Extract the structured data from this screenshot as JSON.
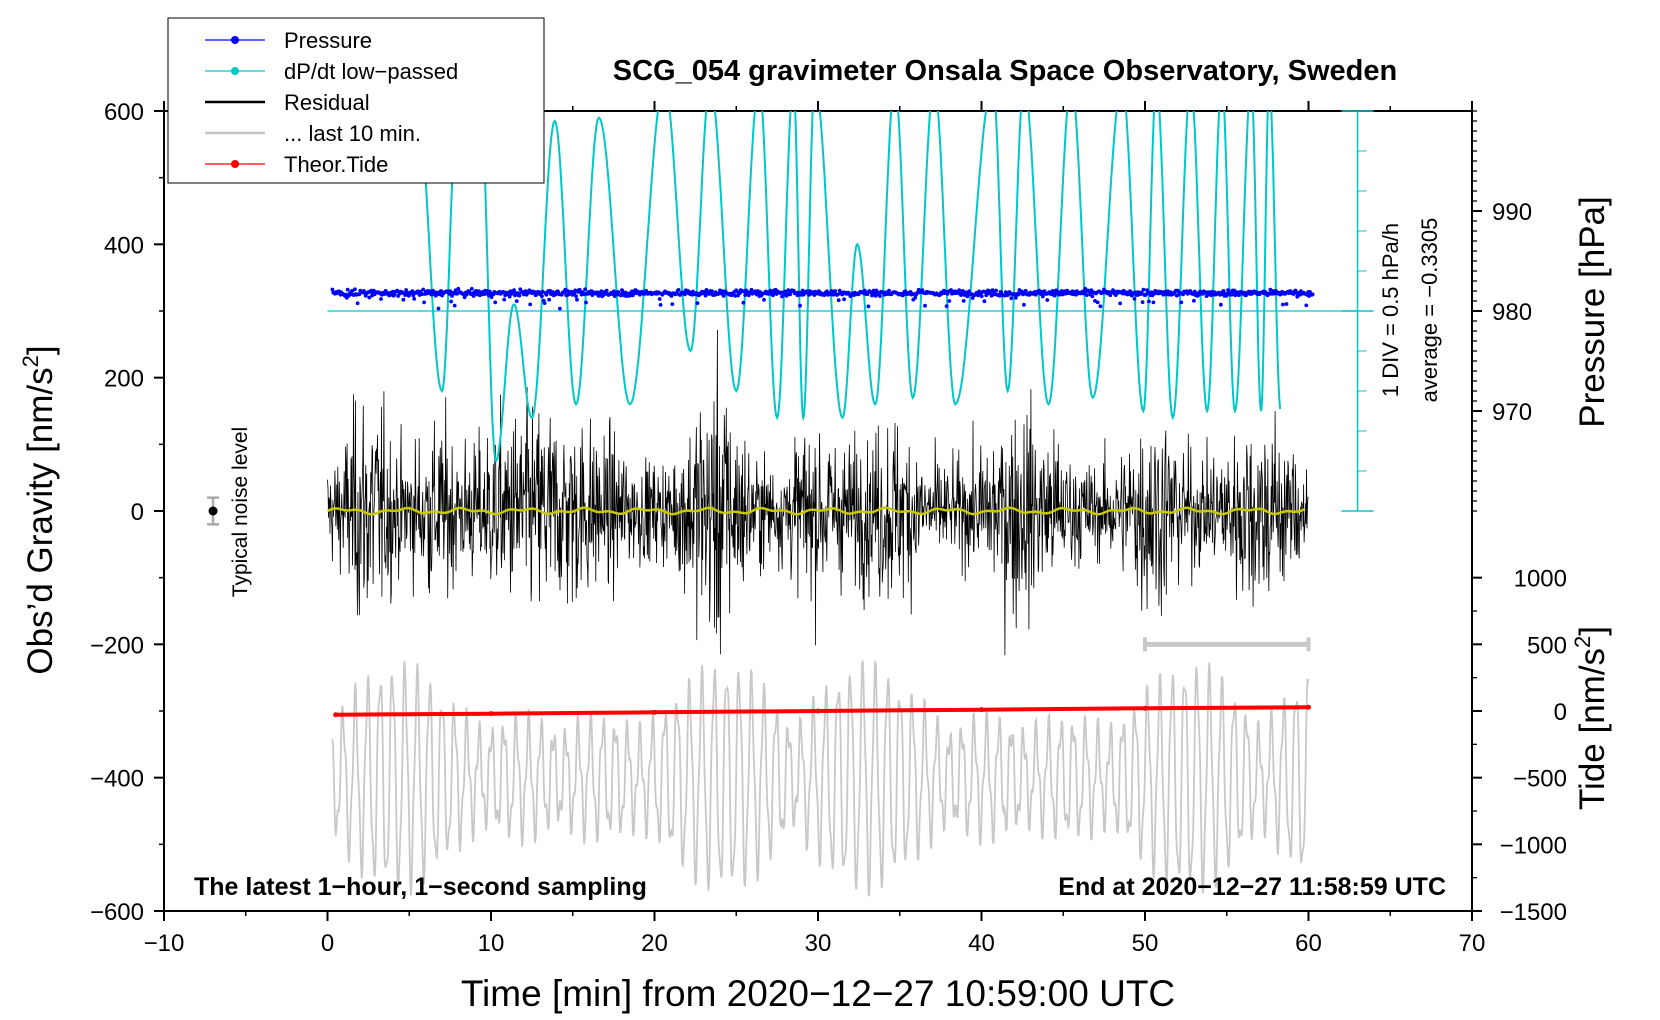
{
  "chart_data": {
    "type": "line",
    "title": "SCG_054 gravimeter Onsala Space Observatory, Sweden",
    "xlabel": "Time [min] from 2020−12−27 10:59:00 UTC",
    "ylabel_left": "Obs’d Gravity [nm/s",
    "ylabel_left_sup": "2",
    "ylabel_left_end": "]",
    "ylabel_right_top": "Pressure [hPa]",
    "ylabel_right_bottom": "Tide [nm/s",
    "ylabel_right_bottom_sup": "2",
    "ylabel_right_bottom_end": "]",
    "xlim": [
      -10,
      70
    ],
    "ylim": [
      -600,
      600
    ],
    "x_ticks": [
      -10,
      0,
      10,
      20,
      30,
      40,
      50,
      60,
      70
    ],
    "x_tick_labels": [
      "−10",
      "0",
      "10",
      "20",
      "30",
      "40",
      "50",
      "60",
      "70"
    ],
    "y_ticks": [
      -600,
      -400,
      -200,
      0,
      200,
      400,
      600
    ],
    "y_tick_labels": [
      "−600",
      "−400",
      "−200",
      "0",
      "200",
      "400",
      "600"
    ],
    "pressure_axis": {
      "ticks": [
        970,
        980,
        990
      ],
      "tick_labels": [
        "970",
        "980",
        "990"
      ],
      "gravity_at_980": 300,
      "gravity_per_hpa": 15
    },
    "tide_axis": {
      "ticks": [
        -1500,
        -1000,
        -500,
        0,
        500,
        1000
      ],
      "tick_labels": [
        "−1500",
        "−1000",
        "−500",
        "0",
        "500",
        "1000"
      ],
      "gravity_at_zero": -300,
      "gravity_per_unit": 0.2
    },
    "dpdt_scale": {
      "label_div": "1 DIV = 0.5 hPa/h",
      "label_average": "average = −0.3305",
      "x": 63,
      "range": [
        0,
        600
      ],
      "major_ticks": [
        0,
        300,
        600
      ],
      "minor_step": 60
    },
    "noise_level": {
      "label": "Typical noise level",
      "x": -7,
      "y": 0,
      "err": 20
    },
    "last10_bar": {
      "x_start": 50,
      "x_end": 60,
      "y": -200
    },
    "series": [
      {
        "name": "Pressure",
        "color": "#0000ff",
        "marker": "dot",
        "x_range": [
          0.3,
          60.3
        ],
        "mean_gravity": 327,
        "spread": 6
      },
      {
        "name": "dP/dt low−passed",
        "color": "#00c8c8",
        "marker": "dot",
        "baseline_gravity": 300,
        "peaks": [
          {
            "x": 4.4,
            "y": 640
          },
          {
            "x": 5.4,
            "y": 640
          },
          {
            "x": 7.0,
            "y": 180
          },
          {
            "x": 8.0,
            "y": 640
          },
          {
            "x": 9.3,
            "y": 640
          },
          {
            "x": 10.3,
            "y": 75
          },
          {
            "x": 11.4,
            "y": 310
          },
          {
            "x": 12.5,
            "y": 140
          },
          {
            "x": 13.9,
            "y": 585
          },
          {
            "x": 15.2,
            "y": 160
          },
          {
            "x": 16.6,
            "y": 590
          },
          {
            "x": 18.5,
            "y": 160
          },
          {
            "x": 20.6,
            "y": 640
          },
          {
            "x": 22.2,
            "y": 240
          },
          {
            "x": 23.4,
            "y": 640
          },
          {
            "x": 25.0,
            "y": 180
          },
          {
            "x": 26.4,
            "y": 640
          },
          {
            "x": 27.5,
            "y": 140
          },
          {
            "x": 28.5,
            "y": 640
          },
          {
            "x": 29.1,
            "y": 140
          },
          {
            "x": 29.8,
            "y": 640
          },
          {
            "x": 31.5,
            "y": 140
          },
          {
            "x": 32.4,
            "y": 400
          },
          {
            "x": 33.5,
            "y": 160
          },
          {
            "x": 34.7,
            "y": 640
          },
          {
            "x": 35.8,
            "y": 170
          },
          {
            "x": 37.1,
            "y": 640
          },
          {
            "x": 38.4,
            "y": 160
          },
          {
            "x": 40.7,
            "y": 640
          },
          {
            "x": 41.6,
            "y": 180
          },
          {
            "x": 42.6,
            "y": 640
          },
          {
            "x": 44.1,
            "y": 160
          },
          {
            "x": 45.5,
            "y": 640
          },
          {
            "x": 46.8,
            "y": 170
          },
          {
            "x": 48.6,
            "y": 640
          },
          {
            "x": 49.9,
            "y": 150
          },
          {
            "x": 50.7,
            "y": 640
          },
          {
            "x": 51.7,
            "y": 140
          },
          {
            "x": 52.8,
            "y": 640
          },
          {
            "x": 53.8,
            "y": 150
          },
          {
            "x": 54.7,
            "y": 640
          },
          {
            "x": 55.5,
            "y": 150
          },
          {
            "x": 56.5,
            "y": 640
          },
          {
            "x": 57.1,
            "y": 150
          },
          {
            "x": 57.6,
            "y": 640
          },
          {
            "x": 58.3,
            "y": 150
          }
        ]
      },
      {
        "name": "Residual",
        "color": "#000000",
        "marker": "line",
        "x_range": [
          0,
          60
        ],
        "peak_amplitude": 260
      },
      {
        "name": "... last 10 min.",
        "color": "#c8c8c8",
        "marker": "line",
        "x_range": [
          0.3,
          60
        ],
        "center_gravity": -400,
        "peak_amplitude": 200
      },
      {
        "name": "Theor.Tide",
        "color": "#ff0000",
        "marker": "dot",
        "x": [
          0.5,
          10,
          20,
          30,
          40,
          50,
          60
        ],
        "tide_values": [
          -28,
          -20,
          -10,
          0,
          10,
          20,
          28
        ]
      }
    ]
  },
  "legend": [
    {
      "label": "Pressure",
      "color": "#0000ff",
      "style": "line-dot"
    },
    {
      "label": "dP/dt low−passed",
      "color": "#00c8c8",
      "style": "line-dot"
    },
    {
      "label": "Residual",
      "color": "#000000",
      "style": "line"
    },
    {
      "label": "... last 10 min.",
      "color": "#c8c8c8",
      "style": "line"
    },
    {
      "label": "Theor.Tide",
      "color": "#ff0000",
      "style": "line-dot"
    }
  ],
  "annotations": {
    "bottom_left": "The latest 1−hour, 1−second sampling",
    "bottom_right": "End at 2020−12−27 11:58:59 UTC"
  },
  "colors": {
    "pressure": "#0000ff",
    "dpdt": "#00c8c8",
    "residual": "#000000",
    "residual_smooth": "#c8c800",
    "last10": "#c8c8c8",
    "tide": "#ff0000",
    "noise_bar": "#aaaaaa"
  }
}
